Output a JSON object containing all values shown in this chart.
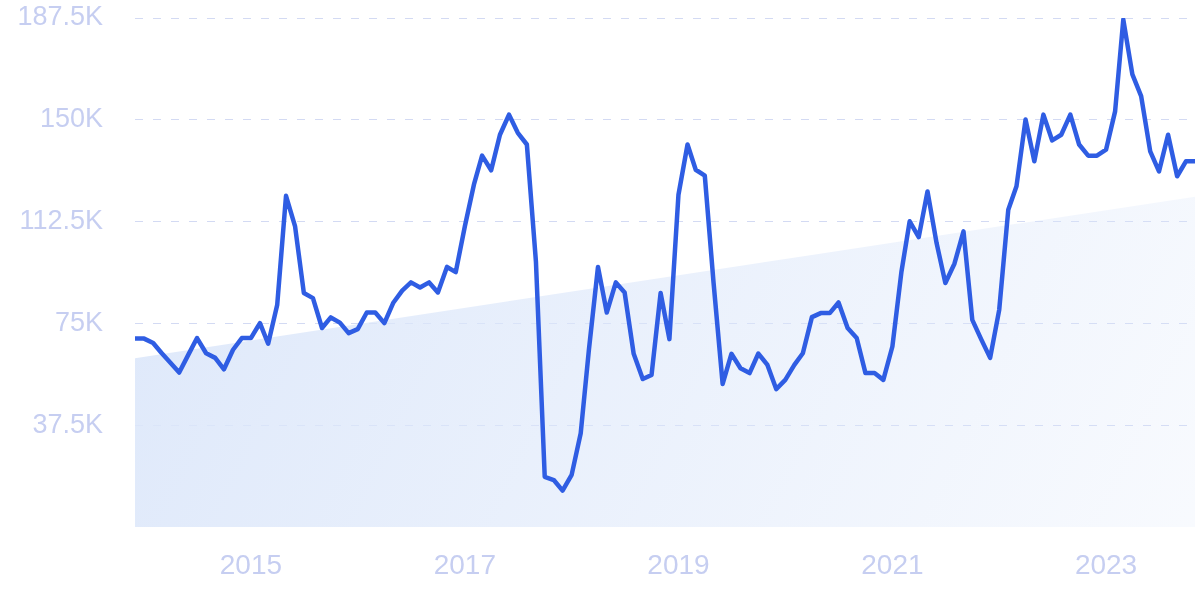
{
  "chart_data": {
    "type": "line",
    "x": [
      "2013-12",
      "2014-01",
      "2014-02",
      "2014-03",
      "2014-04",
      "2014-05",
      "2014-06",
      "2014-07",
      "2014-08",
      "2014-09",
      "2014-10",
      "2014-11",
      "2014-12",
      "2015-01",
      "2015-02",
      "2015-03",
      "2015-04",
      "2015-05",
      "2015-06",
      "2015-07",
      "2015-08",
      "2015-09",
      "2015-10",
      "2015-11",
      "2015-12",
      "2016-01",
      "2016-02",
      "2016-03",
      "2016-04",
      "2016-05",
      "2016-06",
      "2016-07",
      "2016-08",
      "2016-09",
      "2016-10",
      "2016-11",
      "2016-12",
      "2017-01",
      "2017-02",
      "2017-03",
      "2017-04",
      "2017-05",
      "2017-06",
      "2017-07",
      "2017-08",
      "2017-09",
      "2017-10",
      "2017-11",
      "2017-12",
      "2018-01",
      "2018-02",
      "2018-03",
      "2018-04",
      "2018-05",
      "2018-06",
      "2018-07",
      "2018-08",
      "2018-09",
      "2018-10",
      "2018-11",
      "2018-12",
      "2019-01",
      "2019-02",
      "2019-03",
      "2019-04",
      "2019-05",
      "2019-06",
      "2019-07",
      "2019-08",
      "2019-09",
      "2019-10",
      "2019-11",
      "2019-12",
      "2020-01",
      "2020-02",
      "2020-03",
      "2020-04",
      "2020-05",
      "2020-06",
      "2020-07",
      "2020-08",
      "2020-09",
      "2020-10",
      "2020-11",
      "2020-12",
      "2021-01",
      "2021-02",
      "2021-03",
      "2021-04",
      "2021-05",
      "2021-06",
      "2021-07",
      "2021-08",
      "2021-09",
      "2021-10",
      "2021-11",
      "2021-12",
      "2022-01",
      "2022-02",
      "2022-03",
      "2022-04",
      "2022-05",
      "2022-06",
      "2022-07",
      "2022-08",
      "2022-09",
      "2022-10",
      "2022-11",
      "2022-12",
      "2023-01",
      "2023-02",
      "2023-03",
      "2023-04",
      "2023-05",
      "2023-06",
      "2023-07",
      "2023-08",
      "2023-09",
      "2023-10",
      "2023-11"
    ],
    "series": [
      {
        "type": "area",
        "color": "#dce7fa",
        "x": [
          "2013-12",
          "2023-11"
        ],
        "values": [
          62200,
          121700
        ]
      },
      {
        "type": "line",
        "color": "#2f5de3",
        "values": [
          69400,
          69400,
          67800,
          64200,
          60500,
          56900,
          63400,
          69600,
          64000,
          62300,
          58100,
          65300,
          69600,
          69600,
          75100,
          67500,
          81900,
          122000,
          110700,
          86200,
          84300,
          73300,
          77200,
          75300,
          71400,
          72900,
          79000,
          79000,
          75100,
          82500,
          87100,
          90100,
          88200,
          90100,
          86400,
          95800,
          93900,
          110700,
          126100,
          136800,
          131400,
          144500,
          151900,
          145200,
          140900,
          97700,
          18500,
          17300,
          13400,
          19200,
          34500,
          65300,
          95800,
          79000,
          90100,
          86400,
          63800,
          54500,
          56000,
          86200,
          69200,
          122400,
          140900,
          131600,
          129400,
          89900,
          52700,
          63800,
          58500,
          56700,
          63900,
          59700,
          50800,
          54200,
          59700,
          64000,
          77300,
          78800,
          78800,
          82700,
          73300,
          69600,
          56700,
          56700,
          54200,
          66500,
          94100,
          112600,
          106800,
          123600,
          104600,
          89900,
          97000,
          108900,
          76300,
          69000,
          62300,
          80000,
          116900,
          125500,
          150100,
          134700,
          151900,
          142400,
          144500,
          151900,
          140900,
          136800,
          136800,
          139000,
          153100,
          186900,
          166700,
          158700,
          138400,
          131000,
          144500,
          129200,
          134700,
          134700
        ]
      }
    ],
    "xlim": [
      "2013-12",
      "2023-11"
    ],
    "xticks": [
      "2015",
      "2017",
      "2019",
      "2021",
      "2023"
    ],
    "ylim": [
      0,
      187500
    ],
    "yticks": [
      {
        "value": 37500,
        "label": "37.5K"
      },
      {
        "value": 75000,
        "label": "75K"
      },
      {
        "value": 112500,
        "label": "112.5K"
      },
      {
        "value": 150000,
        "label": "150K"
      },
      {
        "value": 187500,
        "label": "187.5K"
      }
    ],
    "grid": "y",
    "marker": "none"
  }
}
